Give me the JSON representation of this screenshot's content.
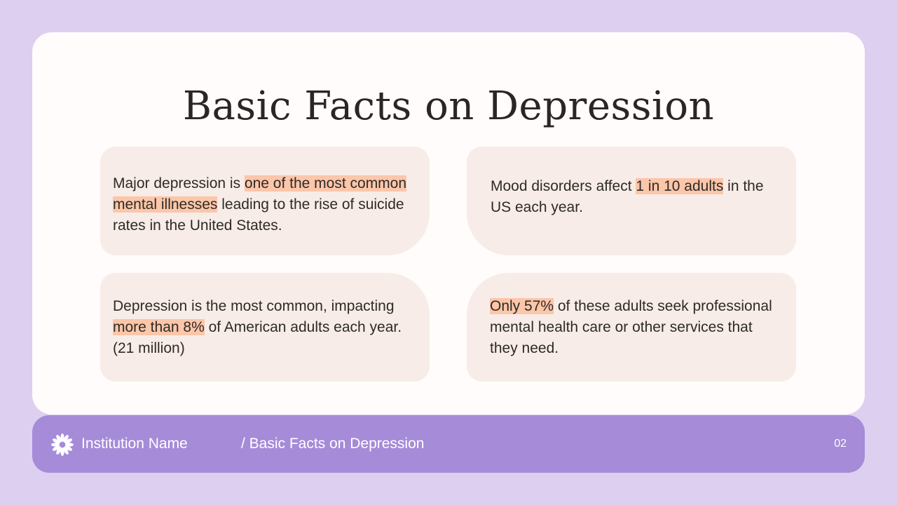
{
  "slide": {
    "title": "Basic Facts on Depression"
  },
  "facts": [
    {
      "before": "Major depression is ",
      "highlight": "one of the most common mental illnesses",
      "after": " leading to the rise of suicide rates in the United States."
    },
    {
      "before": "Mood disorders affect ",
      "highlight": "1 in 10 adults",
      "after": " in the US each year."
    },
    {
      "before": "Depression is the most common, impacting ",
      "highlight": "more than 8%",
      "after": " of American adults each year. (21 million)"
    },
    {
      "before": "",
      "highlight": "Only 57%",
      "after": " of these adults seek professional mental health care or other services that they need."
    }
  ],
  "footer": {
    "institution": "Institution Name",
    "breadcrumb": "/ Basic Facts on Depression",
    "page_number": "02",
    "logo_icon": "flower-logo-icon"
  },
  "colors": {
    "background": "#dccff0",
    "card": "#fffcfb",
    "panel": "#f7ece7",
    "highlight": "#fcc6a9",
    "footer": "#a58bd8",
    "text": "#2b2624"
  }
}
